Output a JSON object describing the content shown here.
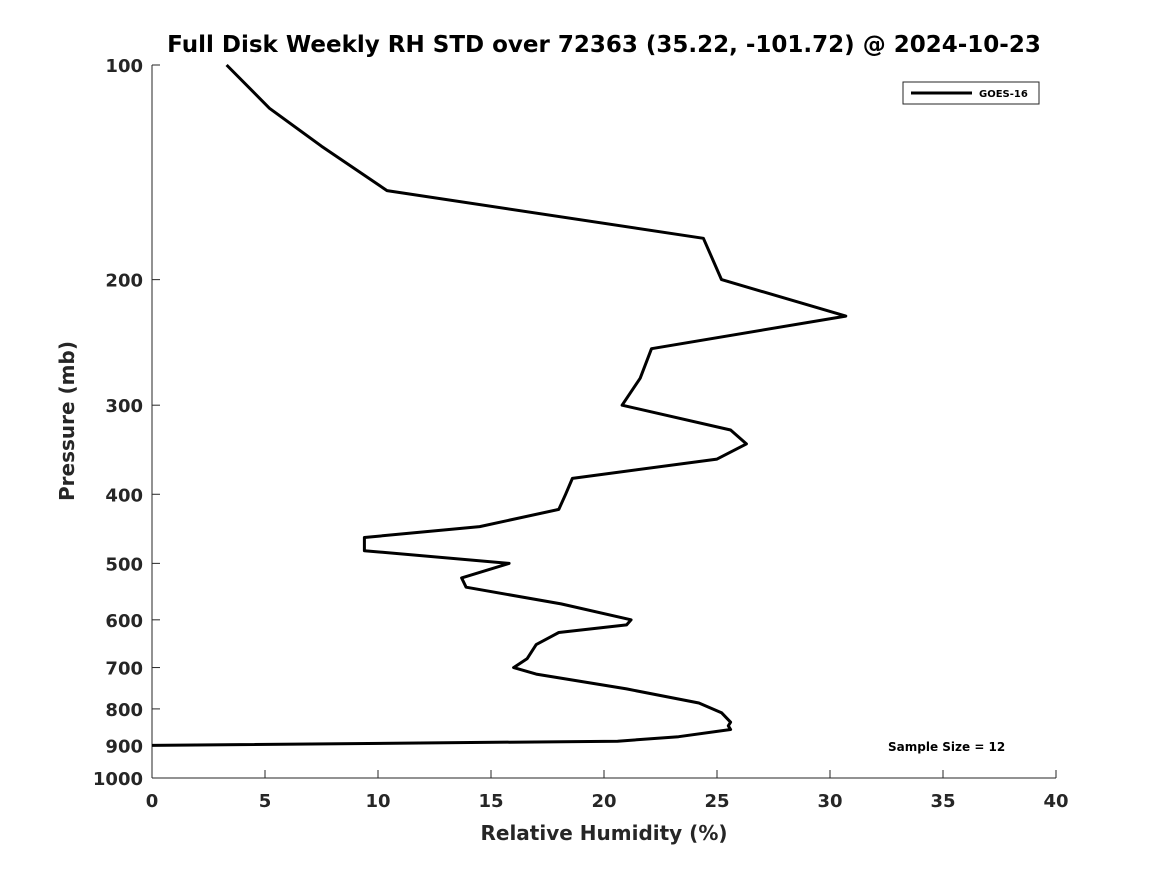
{
  "chart_data": {
    "type": "line",
    "title": "Full Disk Weekly RH STD over 72363 (35.22, -101.72) @ 2024-10-23",
    "xlabel": "Relative Humidity (%)",
    "ylabel": "Pressure (mb)",
    "xlim": [
      0,
      40
    ],
    "ylim": [
      100,
      1000
    ],
    "yscale": "log",
    "yaxis_reversed": true,
    "x_ticks": [
      0,
      5,
      10,
      15,
      20,
      25,
      30,
      35,
      40
    ],
    "y_ticks": [
      100,
      200,
      300,
      400,
      500,
      600,
      700,
      800,
      900,
      1000
    ],
    "grid": false,
    "legend_position": "top-right",
    "annotation": "Sample Size = 12",
    "series": [
      {
        "name": "GOES-16",
        "color": "#000000",
        "points": [
          [
            3.3,
            100
          ],
          [
            5.2,
            115
          ],
          [
            7.5,
            130
          ],
          [
            10.4,
            150
          ],
          [
            24.4,
            175
          ],
          [
            25.2,
            200
          ],
          [
            30.7,
            225
          ],
          [
            22.1,
            250
          ],
          [
            21.6,
            275
          ],
          [
            20.8,
            300
          ],
          [
            25.6,
            325
          ],
          [
            26.3,
            340
          ],
          [
            25.0,
            357
          ],
          [
            18.6,
            380
          ],
          [
            18.3,
            400
          ],
          [
            18.0,
            420
          ],
          [
            14.5,
            444
          ],
          [
            9.4,
            460
          ],
          [
            9.4,
            480
          ],
          [
            15.8,
            500
          ],
          [
            13.7,
            524
          ],
          [
            13.9,
            540
          ],
          [
            18.1,
            570
          ],
          [
            21.2,
            600
          ],
          [
            21.0,
            610
          ],
          [
            18.0,
            625
          ],
          [
            17.0,
            650
          ],
          [
            16.6,
            680
          ],
          [
            16.0,
            700
          ],
          [
            17.0,
            715
          ],
          [
            21.0,
            750
          ],
          [
            24.2,
            785
          ],
          [
            25.2,
            810
          ],
          [
            25.6,
            835
          ],
          [
            25.5,
            845
          ],
          [
            25.6,
            855
          ],
          [
            23.3,
            875
          ],
          [
            20.6,
            888
          ],
          [
            0,
            900
          ]
        ]
      }
    ]
  }
}
